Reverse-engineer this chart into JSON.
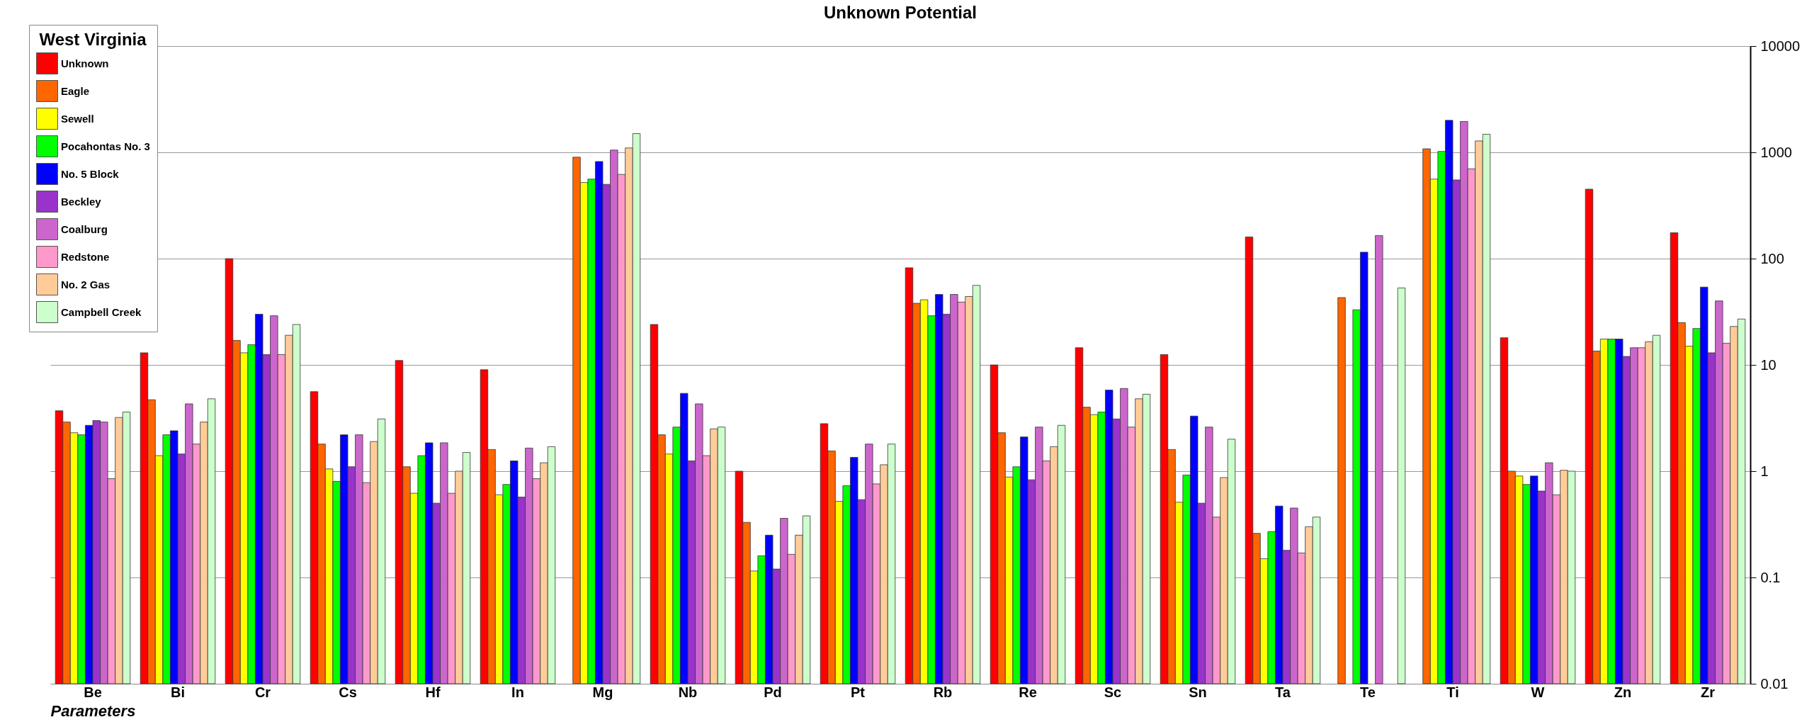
{
  "chart_data": {
    "type": "bar",
    "title": "Unknown Potential",
    "xlabel": "Parameters",
    "legend_title": "West Virginia",
    "categories": [
      "Be",
      "Bi",
      "Cr",
      "Cs",
      "Hf",
      "In",
      "Mg",
      "Nb",
      "Pd",
      "Pt",
      "Rb",
      "Re",
      "Sc",
      "Sn",
      "Ta",
      "Te",
      "Ti",
      "W",
      "Zn",
      "Zr"
    ],
    "series": [
      {
        "name": "Unknown",
        "color": "#ff0000",
        "values": [
          3.7,
          13,
          100,
          5.6,
          11,
          9,
          null,
          24,
          1.0,
          2.8,
          82,
          10,
          14.5,
          12.5,
          160,
          null,
          null,
          18,
          450,
          175
        ]
      },
      {
        "name": "Eagle",
        "color": "#ff6600",
        "values": [
          2.9,
          4.7,
          17,
          1.8,
          1.1,
          1.6,
          900,
          2.2,
          0.33,
          1.55,
          38,
          2.3,
          4.0,
          1.6,
          0.26,
          43,
          1080,
          1.0,
          13.5,
          25
        ]
      },
      {
        "name": "Sewell",
        "color": "#ffff00",
        "values": [
          2.3,
          1.4,
          13,
          1.05,
          0.62,
          0.6,
          520,
          1.45,
          0.115,
          0.52,
          41,
          0.88,
          3.4,
          0.51,
          0.15,
          null,
          560,
          0.9,
          17.5,
          15
        ]
      },
      {
        "name": "Pocahontas No. 3",
        "color": "#00ff00",
        "values": [
          2.2,
          2.2,
          15.5,
          0.8,
          1.4,
          0.75,
          560,
          2.6,
          0.16,
          0.73,
          29,
          1.1,
          3.6,
          0.92,
          0.27,
          33,
          1020,
          0.75,
          17.5,
          22
        ]
      },
      {
        "name": "No. 5 Block",
        "color": "#0000ff",
        "values": [
          2.7,
          2.4,
          30,
          2.2,
          1.85,
          1.25,
          820,
          5.4,
          0.25,
          1.35,
          46,
          2.1,
          5.8,
          3.3,
          0.47,
          115,
          2000,
          0.9,
          17.5,
          54
        ]
      },
      {
        "name": "Beckley",
        "color": "#9933cc",
        "values": [
          3.0,
          1.45,
          12.5,
          1.1,
          0.5,
          0.57,
          500,
          1.25,
          0.12,
          0.54,
          30,
          0.83,
          3.1,
          0.5,
          0.18,
          null,
          550,
          0.65,
          12,
          13
        ]
      },
      {
        "name": "Coalburg",
        "color": "#cc66cc",
        "values": [
          2.9,
          4.3,
          29,
          2.2,
          1.85,
          1.65,
          1050,
          4.3,
          0.36,
          1.8,
          46,
          2.6,
          6.0,
          2.6,
          0.45,
          165,
          1950,
          1.2,
          14.5,
          40
        ]
      },
      {
        "name": "Redstone",
        "color": "#ff99cc",
        "values": [
          0.85,
          1.8,
          12.5,
          0.78,
          0.62,
          0.85,
          620,
          1.4,
          0.165,
          0.76,
          39,
          1.25,
          2.6,
          0.37,
          0.17,
          null,
          700,
          0.6,
          14.5,
          16
        ]
      },
      {
        "name": "No. 2 Gas",
        "color": "#ffcc99",
        "values": [
          3.2,
          2.9,
          19,
          1.9,
          1.0,
          1.2,
          1100,
          2.5,
          0.25,
          1.15,
          44,
          1.7,
          4.8,
          0.87,
          0.3,
          null,
          1280,
          1.02,
          16.5,
          23
        ]
      },
      {
        "name": "Campbell Creek",
        "color": "#ccffcc",
        "values": [
          3.6,
          4.8,
          24,
          3.1,
          1.5,
          1.7,
          1500,
          2.6,
          0.38,
          1.8,
          56,
          2.7,
          5.3,
          2.0,
          0.37,
          53,
          1480,
          1.0,
          19,
          27
        ]
      }
    ],
    "log": true,
    "ylim": [
      0.01,
      10000
    ],
    "yticks": [
      0.01,
      0.1,
      1,
      10,
      100,
      1000,
      10000
    ],
    "grid": "y",
    "legend": "top left"
  }
}
